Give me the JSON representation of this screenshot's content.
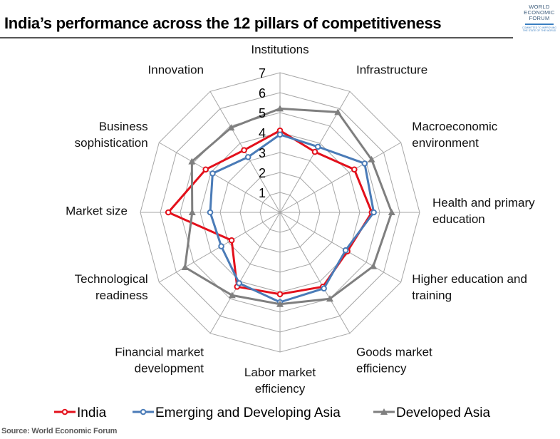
{
  "title": "India’s performance across the 12 pillars of competitiveness",
  "logo": {
    "line1": "WORLD",
    "line2": "ECONOMIC",
    "line3": "FORUM",
    "tagline": "COMMITTED TO IMPROVING THE STATE OF THE WORLD"
  },
  "source": "Source: World Economic Forum",
  "colors": {
    "India": "#e3101b",
    "Emerging and Developing Asia": "#4a7bb7",
    "Developed Asia": "#7f7f7f",
    "grid": "#a6a6a6"
  },
  "chart_data": {
    "type": "radar",
    "title": "India’s performance across the 12 pillars of competitiveness",
    "scale": {
      "min": 0,
      "max": 7,
      "ticks": [
        1,
        2,
        3,
        4,
        5,
        6,
        7
      ]
    },
    "grid": true,
    "legend_position": "bottom",
    "categories": [
      "Institutions",
      "Infrastructure",
      "Macroeconomic environment",
      "Health and primary education",
      "Higher education and training",
      "Goods market efficiency",
      "Labor market efficiency",
      "Financial market development",
      "Technological readiness",
      "Market size",
      "Business sophistication",
      "Innovation"
    ],
    "category_label_lines": [
      [
        "Institutions"
      ],
      [
        "Infrastructure"
      ],
      [
        "Macroeconomic",
        "environment"
      ],
      [
        "Health and primary",
        "education"
      ],
      [
        "Higher education and",
        "training"
      ],
      [
        "Goods market",
        "efficiency"
      ],
      [
        "Labor market",
        "efficiency"
      ],
      [
        "Financial market",
        "development"
      ],
      [
        "Technological",
        "readiness"
      ],
      [
        "Market size"
      ],
      [
        "Business",
        "sophistication"
      ],
      [
        "Innovation"
      ]
    ],
    "series": [
      {
        "name": "India",
        "marker": "circle",
        "values": [
          4.1,
          3.5,
          4.3,
          4.6,
          3.9,
          4.3,
          4.1,
          4.3,
          2.8,
          5.6,
          4.3,
          3.6
        ]
      },
      {
        "name": "Emerging and Developing Asia",
        "marker": "circle",
        "values": [
          3.9,
          3.8,
          4.9,
          4.7,
          3.8,
          4.4,
          4.5,
          4.1,
          3.4,
          3.5,
          3.9,
          3.2
        ]
      },
      {
        "name": "Developed Asia",
        "marker": "triangle",
        "values": [
          5.2,
          5.8,
          5.3,
          5.6,
          5.4,
          5.0,
          4.6,
          4.8,
          5.5,
          4.4,
          5.1,
          4.9
        ]
      }
    ]
  }
}
